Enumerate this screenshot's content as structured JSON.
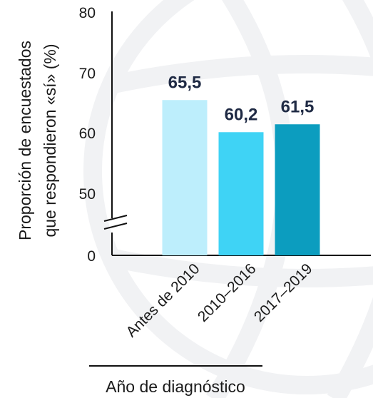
{
  "chart_data": {
    "type": "bar",
    "ylabel_line1": "Proporción de encuestados",
    "ylabel_line2": "que respondieron «sí» (%)",
    "xlabel": "Año de diagnóstico",
    "categories": [
      "Antes de 2010",
      "2010–2016",
      "2017–2019"
    ],
    "values": [
      65.5,
      60.2,
      61.5
    ],
    "value_labels": [
      "65,5",
      "60,2",
      "61,5"
    ],
    "yticks": [
      "0",
      "50",
      "60",
      "70",
      "80"
    ],
    "ylim": [
      0,
      80
    ],
    "axis_break": true,
    "colors": [
      "#bdeefc",
      "#3fd3f5",
      "#0c9dbf"
    ],
    "grid": false
  }
}
